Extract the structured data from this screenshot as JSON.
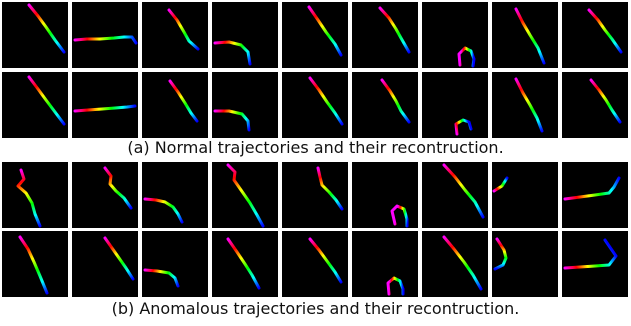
{
  "figure": {
    "caption_a": "(a) Normal trajectories and their recontruction.",
    "caption_b": "(b) Anomalous trajectories and their recontruction."
  },
  "panels": {
    "a": {
      "rows": [
        {
          "tiles": [
            {
              "pts": [
                [
                  27,
                  3
                ],
                [
                  36,
                  14
                ],
                [
                  44,
                  25
                ],
                [
                  53,
                  38
                ],
                [
                  62,
                  50
                ]
              ]
            },
            {
              "pts": [
                [
                  3,
                  38
                ],
                [
                  15,
                  37
                ],
                [
                  28,
                  37
                ],
                [
                  42,
                  36
                ],
                [
                  52,
                  35
                ],
                [
                  60,
                  35
                ],
                [
                  64,
                  41
                ]
              ]
            },
            {
              "pts": [
                [
                  27,
                  8
                ],
                [
                  35,
                  18
                ],
                [
                  42,
                  30
                ],
                [
                  47,
                  39
                ],
                [
                  56,
                  47
                ]
              ]
            },
            {
              "pts": [
                [
                  3,
                  41
                ],
                [
                  17,
                  40
                ],
                [
                  29,
                  43
                ],
                [
                  36,
                  50
                ],
                [
                  38,
                  62
                ]
              ]
            },
            {
              "pts": [
                [
                  27,
                  5
                ],
                [
                  36,
                  18
                ],
                [
                  44,
                  30
                ],
                [
                  53,
                  42
                ],
                [
                  59,
                  53
                ]
              ]
            },
            {
              "pts": [
                [
                  28,
                  6
                ],
                [
                  37,
                  16
                ],
                [
                  44,
                  27
                ],
                [
                  49,
                  36
                ],
                [
                  57,
                  50
                ]
              ]
            },
            {
              "pts": [
                [
                  38,
                  63
                ],
                [
                  37,
                  52
                ],
                [
                  43,
                  46
                ],
                [
                  49,
                  49
                ],
                [
                  52,
                  57
                ],
                [
                  51,
                  64
                ]
              ]
            },
            {
              "pts": [
                [
                  24,
                  7
                ],
                [
                  31,
                  21
                ],
                [
                  38,
                  33
                ],
                [
                  46,
                  46
                ],
                [
                  52,
                  61
                ]
              ]
            },
            {
              "pts": [
                [
                  27,
                  8
                ],
                [
                  36,
                  18
                ],
                [
                  43,
                  28
                ],
                [
                  50,
                  37
                ],
                [
                  59,
                  50
                ]
              ]
            }
          ]
        },
        {
          "tiles": [
            {
              "pts": [
                [
                  27,
                  5
                ],
                [
                  36,
                  17
                ],
                [
                  44,
                  28
                ],
                [
                  53,
                  40
                ],
                [
                  62,
                  52
                ]
              ]
            },
            {
              "pts": [
                [
                  3,
                  39
                ],
                [
                  16,
                  38
                ],
                [
                  30,
                  37
                ],
                [
                  43,
                  36
                ],
                [
                  55,
                  35
                ],
                [
                  63,
                  34
                ]
              ]
            },
            {
              "pts": [
                [
                  28,
                  9
                ],
                [
                  36,
                  20
                ],
                [
                  43,
                  31
                ],
                [
                  49,
                  41
                ],
                [
                  55,
                  49
                ]
              ]
            },
            {
              "pts": [
                [
                  3,
                  39
                ],
                [
                  17,
                  39
                ],
                [
                  30,
                  42
                ],
                [
                  36,
                  49
                ],
                [
                  37,
                  58
                ]
              ]
            },
            {
              "pts": [
                [
                  28,
                  6
                ],
                [
                  37,
                  18
                ],
                [
                  45,
                  30
                ],
                [
                  53,
                  41
                ],
                [
                  60,
                  52
                ]
              ]
            },
            {
              "pts": [
                [
                  30,
                  8
                ],
                [
                  38,
                  19
                ],
                [
                  44,
                  29
                ],
                [
                  49,
                  39
                ],
                [
                  57,
                  50
                ]
              ]
            },
            {
              "pts": [
                [
                  35,
                  62
                ],
                [
                  34,
                  52
                ],
                [
                  41,
                  48
                ],
                [
                  47,
                  50
                ],
                [
                  49,
                  57
                ]
              ]
            },
            {
              "pts": [
                [
                  24,
                  7
                ],
                [
                  31,
                  21
                ],
                [
                  38,
                  33
                ],
                [
                  45,
                  46
                ],
                [
                  50,
                  59
                ]
              ]
            },
            {
              "pts": [
                [
                  29,
                  8
                ],
                [
                  37,
                  18
                ],
                [
                  44,
                  28
                ],
                [
                  50,
                  38
                ],
                [
                  58,
                  50
                ]
              ]
            }
          ]
        }
      ]
    },
    "b": {
      "rows": [
        {
          "tiles": [
            {
              "pts": [
                [
                  19,
                  8
                ],
                [
                  22,
                  17
                ],
                [
                  16,
                  24
                ],
                [
                  24,
                  31
                ],
                [
                  30,
                  41
                ],
                [
                  33,
                  52
                ],
                [
                  38,
                  64
                ]
              ]
            },
            {
              "pts": [
                [
                  33,
                  6
                ],
                [
                  39,
                  14
                ],
                [
                  38,
                  22
                ],
                [
                  44,
                  29
                ],
                [
                  52,
                  36
                ],
                [
                  59,
                  46
                ]
              ]
            },
            {
              "pts": [
                [
                  3,
                  37
                ],
                [
                  14,
                  38
                ],
                [
                  23,
                  40
                ],
                [
                  31,
                  45
                ],
                [
                  36,
                  52
                ],
                [
                  40,
                  60
                ]
              ]
            },
            {
              "pts": [
                [
                  16,
                  3
                ],
                [
                  23,
                  10
                ],
                [
                  22,
                  18
                ],
                [
                  29,
                  28
                ],
                [
                  38,
                  41
                ],
                [
                  45,
                  53
                ],
                [
                  51,
                  64
                ]
              ]
            },
            {
              "pts": [
                [
                  36,
                  6
                ],
                [
                  38,
                  15
                ],
                [
                  40,
                  23
                ],
                [
                  47,
                  30
                ],
                [
                  54,
                  38
                ],
                [
                  60,
                  47
                ]
              ]
            },
            {
              "pts": [
                [
                  43,
                  62
                ],
                [
                  40,
                  49
                ],
                [
                  45,
                  44
                ],
                [
                  52,
                  47
                ],
                [
                  55,
                  57
                ],
                [
                  55,
                  64
                ]
              ]
            },
            {
              "pts": [
                [
                  22,
                  3
                ],
                [
                  33,
                  15
                ],
                [
                  43,
                  28
                ],
                [
                  53,
                  40
                ],
                [
                  61,
                  55
                ]
              ]
            },
            {
              "pts": [
                [
                  2,
                  29
                ],
                [
                  10,
                  24
                ],
                [
                  15,
                  16
                ]
              ]
            },
            {
              "pts": [
                [
                  3,
                  37
                ],
                [
                  18,
                  35
                ],
                [
                  33,
                  33
                ],
                [
                  47,
                  31
                ],
                [
                  52,
                  25
                ],
                [
                  57,
                  16
                ]
              ]
            }
          ]
        },
        {
          "tiles": [
            {
              "pts": [
                [
                  18,
                  6
                ],
                [
                  26,
                  18
                ],
                [
                  32,
                  31
                ],
                [
                  38,
                  45
                ],
                [
                  45,
                  62
                ]
              ]
            },
            {
              "pts": [
                [
                  33,
                  7
                ],
                [
                  40,
                  17
                ],
                [
                  47,
                  27
                ],
                [
                  54,
                  37
                ],
                [
                  61,
                  48
                ]
              ]
            },
            {
              "pts": [
                [
                  3,
                  39
                ],
                [
                  15,
                  40
                ],
                [
                  27,
                  42
                ],
                [
                  33,
                  47
                ],
                [
                  36,
                  55
                ]
              ]
            },
            {
              "pts": [
                [
                  16,
                  8
                ],
                [
                  25,
                  21
                ],
                [
                  33,
                  33
                ],
                [
                  40,
                  44
                ],
                [
                  47,
                  57
                ]
              ]
            },
            {
              "pts": [
                [
                  28,
                  8
                ],
                [
                  37,
                  19
                ],
                [
                  45,
                  30
                ],
                [
                  53,
                  41
                ],
                [
                  59,
                  51
                ]
              ]
            },
            {
              "pts": [
                [
                  37,
                  63
                ],
                [
                  36,
                  52
                ],
                [
                  42,
                  47
                ],
                [
                  48,
                  50
                ],
                [
                  51,
                  58
                ],
                [
                  51,
                  63
                ]
              ]
            },
            {
              "pts": [
                [
                  22,
                  6
                ],
                [
                  32,
                  18
                ],
                [
                  42,
                  31
                ],
                [
                  51,
                  44
                ],
                [
                  59,
                  58
                ]
              ]
            },
            {
              "pts": [
                [
                  5,
                  8
                ],
                [
                  12,
                  19
                ],
                [
                  14,
                  27
                ],
                [
                  11,
                  34
                ],
                [
                  3,
                  38
                ]
              ]
            },
            {
              "pts": [
                [
                  3,
                  37
                ],
                [
                  18,
                  36
                ],
                [
                  33,
                  35
                ],
                [
                  47,
                  34
                ],
                [
                  54,
                  25
                ],
                [
                  43,
                  9
                ]
              ]
            }
          ]
        }
      ]
    }
  },
  "colors": {
    "gradient": [
      "#ff00ff",
      "#ff0000",
      "#ffff00",
      "#00ff00",
      "#00ffff",
      "#0000ff"
    ],
    "tile_bg": "#000000"
  }
}
